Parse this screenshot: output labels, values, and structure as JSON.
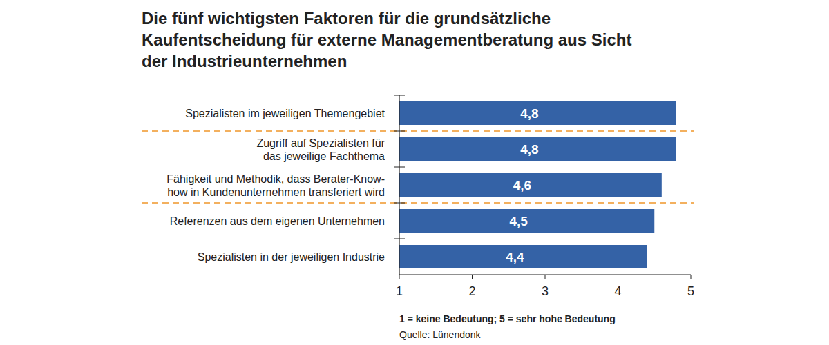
{
  "chart_data": {
    "type": "bar",
    "orientation": "horizontal",
    "title": "Die fünf wichtigsten Faktoren für die grundsätzliche\nKaufentscheidung für externe Managementberatung aus Sicht\nder Industrieunternehmen",
    "categories": [
      "Spezialisten im jeweiligen Themengebiet",
      "Zugriff auf Spezialisten für\ndas jeweilige Fachthema",
      "Fähigkeit und Methodik, dass Berater-Know-\nhow in Kundenunternehmen transferiert wird",
      "Referenzen aus dem eigenen Unternehmen",
      "Spezialisten in der jeweiligen Industrie"
    ],
    "values": [
      4.8,
      4.8,
      4.6,
      4.5,
      4.4
    ],
    "value_labels": [
      "4,8",
      "4,8",
      "4,6",
      "4,5",
      "4,4"
    ],
    "data_labels": true,
    "color": "#3462a6",
    "xlim": [
      1,
      5
    ],
    "xticks": [
      1,
      2,
      3,
      4,
      5
    ],
    "grid": false,
    "annotations": [
      "1 = keine Bedeutung; 5 = sehr hohe Bedeutung",
      "Quelle: Lünendonk"
    ]
  }
}
